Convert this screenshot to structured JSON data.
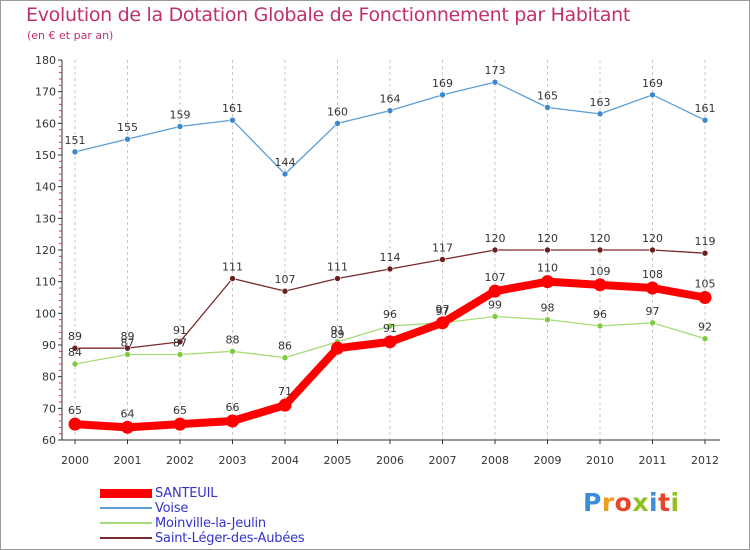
{
  "title": "Evolution de la Dotation Globale de Fonctionnement par Habitant",
  "subtitle": "(en € et par an)",
  "logo": {
    "text": "Proxiti",
    "letters": [
      "P",
      "r",
      "o",
      "x",
      "i",
      "t",
      "i"
    ],
    "colors": [
      "#3a8fd9",
      "#f39c1a",
      "#e8462a",
      "#8fc21f",
      "#3a8fd9",
      "#e8462a",
      "#8fc21f"
    ]
  },
  "chart_data": {
    "type": "line",
    "title": "Evolution de la Dotation Globale de Fonctionnement par Habitant",
    "subtitle": "(en € et par an)",
    "xlabel": "",
    "ylabel": "",
    "ylim": [
      60,
      180
    ],
    "yticks": [
      60,
      70,
      80,
      90,
      100,
      110,
      120,
      130,
      140,
      150,
      160,
      170,
      180
    ],
    "grid": "vertical dashed",
    "legend_position": "bottom-left",
    "x": [
      "2000",
      "2001",
      "2002",
      "2003",
      "2004",
      "2005",
      "2006",
      "2007",
      "2008",
      "2009",
      "2010",
      "2011",
      "2012"
    ],
    "series": [
      {
        "name": "Voise",
        "color": "#5b9ed6",
        "marker": "#3d88cc",
        "values": [
          151,
          155,
          159,
          161,
          144,
          160,
          164,
          169,
          173,
          165,
          163,
          169,
          161
        ]
      },
      {
        "name": "Moinville-la-Jeulin",
        "color": "#a6dc78",
        "marker": "#7ccc3c",
        "values": [
          84,
          87,
          87,
          88,
          86,
          91,
          96,
          97,
          99,
          98,
          96,
          97,
          92
        ]
      },
      {
        "name": "Saint-Léger-des-Aubées",
        "color": "#7a2a2a",
        "marker": "#6a1f1f",
        "values": [
          89,
          89,
          91,
          111,
          107,
          111,
          114,
          117,
          120,
          120,
          120,
          120,
          119
        ]
      },
      {
        "name": "SANTEUIL",
        "color": "#ff0000",
        "marker": "#ff0000",
        "values": [
          65,
          64,
          65,
          66,
          71,
          89,
          91,
          97,
          107,
          110,
          109,
          108,
          105
        ]
      }
    ],
    "legend_order": [
      "SANTEUIL",
      "Voise",
      "Moinville-la-Jeulin",
      "Saint-Léger-des-Aubées"
    ]
  }
}
